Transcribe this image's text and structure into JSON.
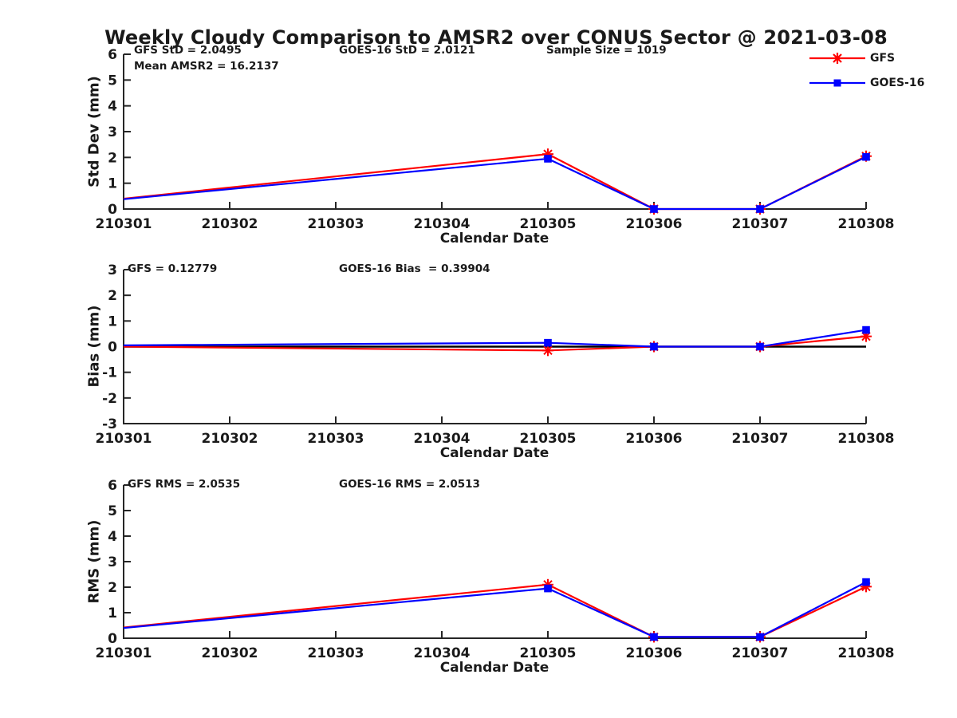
{
  "figure": {
    "title": "Weekly Cloudy Comparison to AMSR2 over CONUS Sector @ 2021-03-08"
  },
  "legend": {
    "position": "top-right",
    "entries": [
      {
        "label": "GFS",
        "color": "#ff0000",
        "marker": "asterisk"
      },
      {
        "label": "GOES-16",
        "color": "#0000ff",
        "marker": "square"
      }
    ]
  },
  "colors": {
    "gfs": "#ff0000",
    "goes16": "#0000ff",
    "axis": "#262626",
    "zero_line": "#000000",
    "text": "#1a1a1a"
  },
  "chart_data": [
    {
      "type": "line",
      "panel": "std-dev",
      "annotations": [
        "GFS StD = 2.0495",
        "GOES-16 StD = 2.0121",
        "Sample Size = 1019",
        "Mean AMSR2 = 16.2137"
      ],
      "ylabel": "Std Dev (mm)",
      "xlabel": "Calendar Date",
      "ylim": [
        0,
        6
      ],
      "yticks": [
        "0",
        "1",
        "2",
        "3",
        "4",
        "5",
        "6"
      ],
      "x_ticks": [
        "210301",
        "210302",
        "210303",
        "210304",
        "210305",
        "210306",
        "210307",
        "210308"
      ],
      "grid": false,
      "zero_line": false,
      "series": [
        {
          "name": "GFS",
          "color": "#ff0000",
          "marker": "asterisk",
          "x": [
            "210301",
            "210305",
            "210306",
            "210307",
            "210308"
          ],
          "y": [
            0.4,
            2.13,
            0.0,
            0.0,
            2.05
          ]
        },
        {
          "name": "GOES-16",
          "color": "#0000ff",
          "marker": "square",
          "x": [
            "210301",
            "210305",
            "210306",
            "210307",
            "210308"
          ],
          "y": [
            0.38,
            1.95,
            0.0,
            0.0,
            2.02
          ]
        }
      ]
    },
    {
      "type": "line",
      "panel": "bias",
      "annotations": [
        "GFS = 0.12779",
        "GOES-16 Bias  = 0.39904"
      ],
      "ylabel": "Bias (mm)",
      "xlabel": "Calendar Date",
      "ylim": [
        -3,
        3
      ],
      "yticks": [
        "-3",
        "-2",
        "-1",
        "0",
        "1",
        "2",
        "3"
      ],
      "x_ticks": [
        "210301",
        "210302",
        "210303",
        "210304",
        "210305",
        "210306",
        "210307",
        "210308"
      ],
      "grid": false,
      "zero_line": true,
      "series": [
        {
          "name": "GFS",
          "color": "#ff0000",
          "marker": "asterisk",
          "x": [
            "210301",
            "210305",
            "210306",
            "210307",
            "210308"
          ],
          "y": [
            0.0,
            -0.15,
            0.0,
            0.0,
            0.4
          ]
        },
        {
          "name": "GOES-16",
          "color": "#0000ff",
          "marker": "square",
          "x": [
            "210301",
            "210305",
            "210306",
            "210307",
            "210308"
          ],
          "y": [
            0.05,
            0.15,
            0.0,
            0.0,
            0.65
          ]
        }
      ]
    },
    {
      "type": "line",
      "panel": "rms",
      "annotations": [
        "GFS RMS = 2.0535",
        "GOES-16 RMS = 2.0513"
      ],
      "ylabel": "RMS (mm)",
      "xlabel": "Calendar Date",
      "ylim": [
        0,
        6
      ],
      "yticks": [
        "0",
        "1",
        "2",
        "3",
        "4",
        "5",
        "6"
      ],
      "x_ticks": [
        "210301",
        "210302",
        "210303",
        "210304",
        "210305",
        "210306",
        "210307",
        "210308"
      ],
      "grid": false,
      "zero_line": false,
      "series": [
        {
          "name": "GFS",
          "color": "#ff0000",
          "marker": "asterisk",
          "x": [
            "210301",
            "210305",
            "210306",
            "210307",
            "210308"
          ],
          "y": [
            0.42,
            2.1,
            0.05,
            0.05,
            2.02
          ]
        },
        {
          "name": "GOES-16",
          "color": "#0000ff",
          "marker": "square",
          "x": [
            "210301",
            "210305",
            "210306",
            "210307",
            "210308"
          ],
          "y": [
            0.4,
            1.95,
            0.05,
            0.05,
            2.2
          ]
        }
      ]
    }
  ]
}
